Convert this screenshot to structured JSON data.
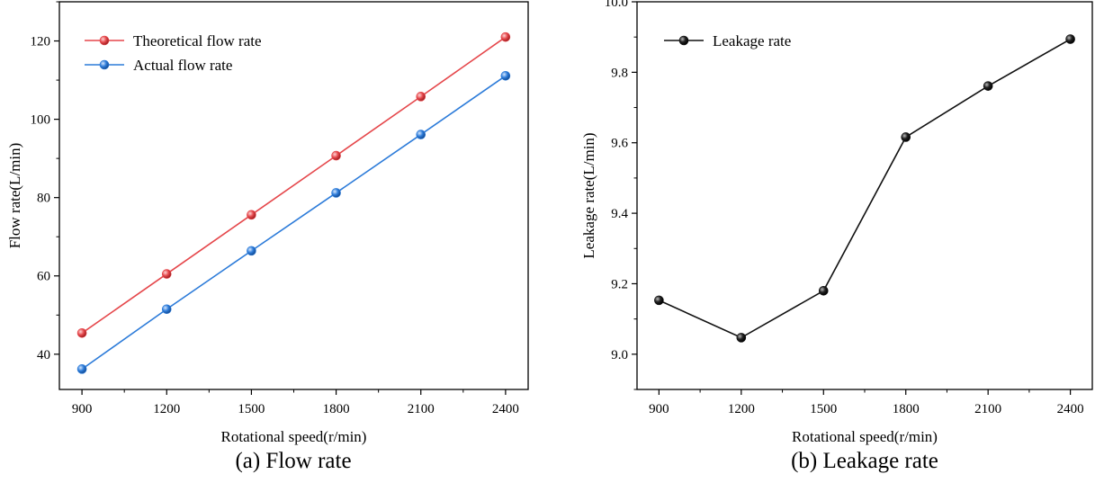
{
  "chart_data": [
    {
      "type": "line",
      "caption": "(a) Flow rate",
      "xlabel": "Rotational speed(r/min)",
      "ylabel": "Flow rate(L/min)",
      "x": [
        900,
        1200,
        1500,
        1800,
        2100,
        2400
      ],
      "xlim": [
        820,
        2480
      ],
      "ylim": [
        31,
        130
      ],
      "xticks": [
        "900",
        "1200",
        "1500",
        "1800",
        "2100",
        "2400"
      ],
      "yticks": [
        "40",
        "60",
        "80",
        "100",
        "120"
      ],
      "legend_position": "top-left",
      "series": [
        {
          "name": "Theoretical flow rate",
          "color": "#e5474b",
          "values": [
            45.4,
            60.5,
            75.6,
            90.7,
            105.8,
            121.0
          ]
        },
        {
          "name": "Actual flow rate",
          "color": "#2c7bd9",
          "values": [
            36.2,
            51.5,
            66.4,
            81.2,
            96.1,
            111.1
          ]
        }
      ]
    },
    {
      "type": "line",
      "caption": "(b) Leakage rate",
      "xlabel": "Rotational speed(r/min)",
      "ylabel": "Leakage rate(L/min)",
      "x": [
        900,
        1200,
        1500,
        1800,
        2100,
        2400
      ],
      "xlim": [
        820,
        2480
      ],
      "ylim": [
        8.9,
        10.0
      ],
      "xticks": [
        "900",
        "1200",
        "1500",
        "1800",
        "2100",
        "2400"
      ],
      "yticks": [
        "9.0",
        "9.2",
        "9.4",
        "9.6",
        "9.8",
        "10.0"
      ],
      "legend_position": "top-left",
      "series": [
        {
          "name": "Leakage rate",
          "color": "#111111",
          "values": [
            9.153,
            9.047,
            9.18,
            9.616,
            9.761,
            9.894
          ]
        }
      ]
    }
  ]
}
